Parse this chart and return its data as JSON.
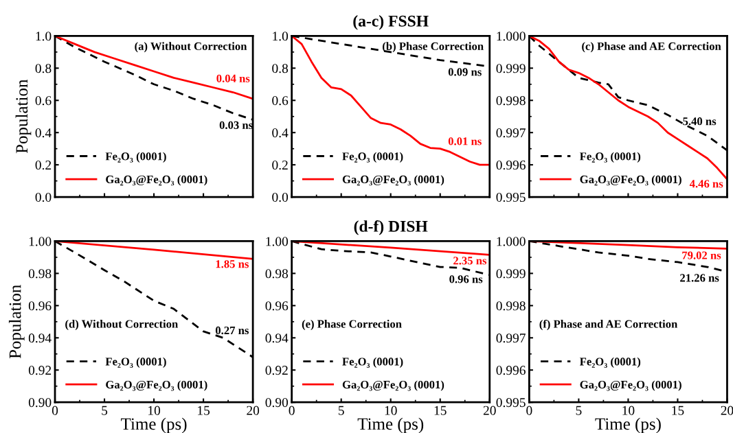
{
  "chart_data": [
    {
      "type": "line",
      "xlim": [
        0,
        20
      ],
      "xticks": [
        0,
        5,
        10,
        15,
        20
      ],
      "ylim": [
        0,
        1
      ],
      "tick_labels": "y",
      "ylabel": "Population",
      "legend": "bottom left",
      "grid": false,
      "yticks": [
        {
          "value": 0,
          "label": "0.0"
        },
        {
          "value": 0.2,
          "label": "0.2"
        },
        {
          "value": 0.4,
          "label": "0.4"
        },
        {
          "value": 0.6,
          "label": "0.6"
        },
        {
          "value": 0.8,
          "label": "0.8"
        },
        {
          "value": 1,
          "label": "1.0"
        }
      ],
      "annotations": [
        "(a) Without Correction",
        "0.04 ns",
        "0.03 ns"
      ],
      "series": [
        {
          "name": "Fe₂O₃ (0001)",
          "color": "#000000",
          "line_style": "dashed",
          "x": [
            0,
            2,
            3,
            5,
            8,
            10,
            12,
            14,
            16,
            18,
            20
          ],
          "values": [
            1.0,
            0.93,
            0.9,
            0.84,
            0.76,
            0.7,
            0.66,
            0.61,
            0.57,
            0.52,
            0.48
          ]
        },
        {
          "name": "Ga₂O₃@Fe₂O₃ (0001)",
          "color": "#ff0000",
          "line_style": "solid",
          "x": [
            0,
            2,
            4,
            6,
            8,
            10,
            12,
            14,
            16,
            18,
            20
          ],
          "values": [
            1.0,
            0.95,
            0.9,
            0.86,
            0.82,
            0.78,
            0.74,
            0.71,
            0.68,
            0.65,
            0.61
          ]
        }
      ]
    },
    {
      "type": "line",
      "title": "(a-c) FSSH",
      "xlim": [
        0,
        20
      ],
      "xticks": [
        0,
        5,
        10,
        15,
        20
      ],
      "ylim": [
        0,
        1
      ],
      "tick_labels": "y",
      "legend": "bottom left",
      "grid": false,
      "yticks": [
        {
          "value": 0,
          "label": "0.0"
        },
        {
          "value": 0.2,
          "label": "0.2"
        },
        {
          "value": 0.4,
          "label": "0.4"
        },
        {
          "value": 0.6,
          "label": "0.6"
        },
        {
          "value": 0.8,
          "label": "0.8"
        },
        {
          "value": 1,
          "label": "1.0"
        }
      ],
      "annotations": [
        "(b) Phase Correction",
        "0.09 ns",
        "0.01 ns"
      ],
      "series": [
        {
          "name": "Fe₂O₃ (0001)",
          "color": "#000000",
          "line_style": "dashed",
          "x": [
            0,
            5,
            10,
            15,
            20
          ],
          "values": [
            1.0,
            0.95,
            0.9,
            0.85,
            0.81
          ]
        },
        {
          "name": "Ga₂O₃@Fe₂O₃ (0001)",
          "color": "#ff0000",
          "line_style": "solid",
          "x": [
            0,
            1,
            2,
            3,
            4,
            5,
            6,
            7,
            8,
            9,
            10,
            11,
            12,
            13,
            14,
            15,
            16,
            17,
            18,
            19,
            20
          ],
          "values": [
            1.0,
            0.95,
            0.84,
            0.74,
            0.68,
            0.67,
            0.63,
            0.56,
            0.49,
            0.46,
            0.45,
            0.42,
            0.38,
            0.33,
            0.305,
            0.3,
            0.28,
            0.25,
            0.22,
            0.2,
            0.2
          ]
        }
      ]
    },
    {
      "type": "line",
      "xlim": [
        0,
        20
      ],
      "xticks": [
        0,
        5,
        10,
        15,
        20
      ],
      "ylim": [
        0.995,
        1.0
      ],
      "tick_labels": "y",
      "legend": "bottom left",
      "grid": false,
      "yticks": [
        {
          "value": 0.995,
          "label": "0.995"
        },
        {
          "value": 0.996,
          "label": "0.996"
        },
        {
          "value": 0.997,
          "label": "0.997"
        },
        {
          "value": 0.998,
          "label": "0.998"
        },
        {
          "value": 0.999,
          "label": "0.999"
        },
        {
          "value": 1,
          "label": "1.000"
        }
      ],
      "annotations": [
        "(c) Phase and AE Correction",
        "5.40 ns",
        "4.46 ns"
      ],
      "series": [
        {
          "name": "Fe₂O₃ (0001)",
          "color": "#000000",
          "line_style": "dashed",
          "x": [
            0,
            1,
            3,
            5,
            7,
            8,
            9,
            10,
            12,
            14,
            16,
            17,
            18,
            20
          ],
          "values": [
            1.0,
            0.9997,
            0.9992,
            0.9987,
            0.99855,
            0.9985,
            0.9981,
            0.998,
            0.99785,
            0.99755,
            0.9972,
            0.99705,
            0.9969,
            0.99645
          ]
        },
        {
          "name": "Ga₂O₃@Fe₂O₃ (0001)",
          "color": "#ff0000",
          "line_style": "solid",
          "x": [
            0,
            1,
            2,
            3,
            4,
            5,
            6,
            7,
            8,
            9,
            10,
            11,
            12,
            13,
            14,
            15,
            16,
            17,
            18,
            19,
            20
          ],
          "values": [
            1.0,
            0.99985,
            0.9996,
            0.9992,
            0.99895,
            0.99885,
            0.9987,
            0.9985,
            0.99825,
            0.998,
            0.9978,
            0.99765,
            0.9975,
            0.9973,
            0.997,
            0.9968,
            0.9966,
            0.9964,
            0.9962,
            0.9959,
            0.99555
          ]
        }
      ]
    },
    {
      "type": "line",
      "xlim": [
        0,
        20
      ],
      "xticks": [
        0,
        5,
        10,
        15,
        20
      ],
      "ylim": [
        0.9,
        1.0
      ],
      "xlabel": "Time (ps)",
      "ylabel": "Population",
      "legend": "bottom left",
      "grid": false,
      "yticks": [
        {
          "value": 0.9,
          "label": "0.90"
        },
        {
          "value": 0.92,
          "label": "0.92"
        },
        {
          "value": 0.94,
          "label": "0.94"
        },
        {
          "value": 0.96,
          "label": "0.96"
        },
        {
          "value": 0.98,
          "label": "0.98"
        },
        {
          "value": 1,
          "label": "1.00"
        }
      ],
      "annotations": [
        "(d) Without Correction",
        "1.85 ns",
        "0.27 ns"
      ],
      "series": [
        {
          "name": "Fe₂O₃ (0001)",
          "color": "#000000",
          "line_style": "dashed",
          "x": [
            0,
            2,
            5,
            7,
            10,
            12,
            15,
            17,
            20
          ],
          "values": [
            1.0,
            0.993,
            0.982,
            0.975,
            0.963,
            0.958,
            0.944,
            0.94,
            0.928
          ]
        },
        {
          "name": "Ga₂O₃@Fe₂O₃ (0001)",
          "color": "#ff0000",
          "line_style": "solid",
          "x": [
            0,
            10,
            20
          ],
          "values": [
            1.0,
            0.9947,
            0.989
          ]
        }
      ]
    },
    {
      "type": "line",
      "title": "(d-f) DISH",
      "xlim": [
        0,
        20
      ],
      "xticks": [
        0,
        5,
        10,
        15,
        20
      ],
      "ylim": [
        0.9,
        1.0
      ],
      "xlabel": "Time (ps)",
      "legend": "bottom left",
      "grid": false,
      "yticks": [
        {
          "value": 0.9,
          "label": "0.90"
        },
        {
          "value": 0.92,
          "label": "0.92"
        },
        {
          "value": 0.94,
          "label": "0.94"
        },
        {
          "value": 0.96,
          "label": "0.96"
        },
        {
          "value": 0.98,
          "label": "0.98"
        },
        {
          "value": 1,
          "label": "1.00"
        }
      ],
      "annotations": [
        "(e) Phase Correction",
        "2.35 ns",
        "0.96 ns"
      ],
      "series": [
        {
          "name": "Fe₂O₃ (0001)",
          "color": "#000000",
          "line_style": "dashed",
          "x": [
            0,
            3,
            5,
            8,
            10,
            13,
            15,
            17,
            20
          ],
          "values": [
            1.0,
            0.995,
            0.994,
            0.993,
            0.9905,
            0.9865,
            0.984,
            0.9835,
            0.979
          ]
        },
        {
          "name": "Ga₂O₃@Fe₂O₃ (0001)",
          "color": "#ff0000",
          "line_style": "solid",
          "x": [
            0,
            10,
            20
          ],
          "values": [
            1.0,
            0.996,
            0.9915
          ]
        }
      ]
    },
    {
      "type": "line",
      "xlim": [
        0,
        20
      ],
      "xticks": [
        0,
        5,
        10,
        15,
        20
      ],
      "ylim": [
        0.995,
        1.0
      ],
      "xlabel": "Time (ps)",
      "legend": "bottom left",
      "grid": false,
      "yticks": [
        {
          "value": 0.995,
          "label": "0.995"
        },
        {
          "value": 0.996,
          "label": "0.996"
        },
        {
          "value": 0.997,
          "label": "0.997"
        },
        {
          "value": 0.998,
          "label": "0.998"
        },
        {
          "value": 0.999,
          "label": "0.999"
        },
        {
          "value": 1,
          "label": "1.000"
        }
      ],
      "annotations": [
        "(f) Phase and AE Correction",
        "79.02 ns",
        "21.26 ns"
      ],
      "series": [
        {
          "name": "Fe₂O₃ (0001)",
          "color": "#000000",
          "line_style": "dashed",
          "x": [
            0,
            3,
            5,
            7,
            10,
            12,
            15,
            18,
            20
          ],
          "values": [
            1.0,
            0.99985,
            0.99975,
            0.99965,
            0.99955,
            0.99945,
            0.99935,
            0.9992,
            0.99905
          ]
        },
        {
          "name": "Ga₂O₃@Fe₂O₃ (0001)",
          "color": "#ff0000",
          "line_style": "solid",
          "x": [
            0,
            10,
            15,
            20
          ],
          "values": [
            1.0,
            0.99988,
            0.99981,
            0.99977
          ]
        }
      ]
    }
  ]
}
